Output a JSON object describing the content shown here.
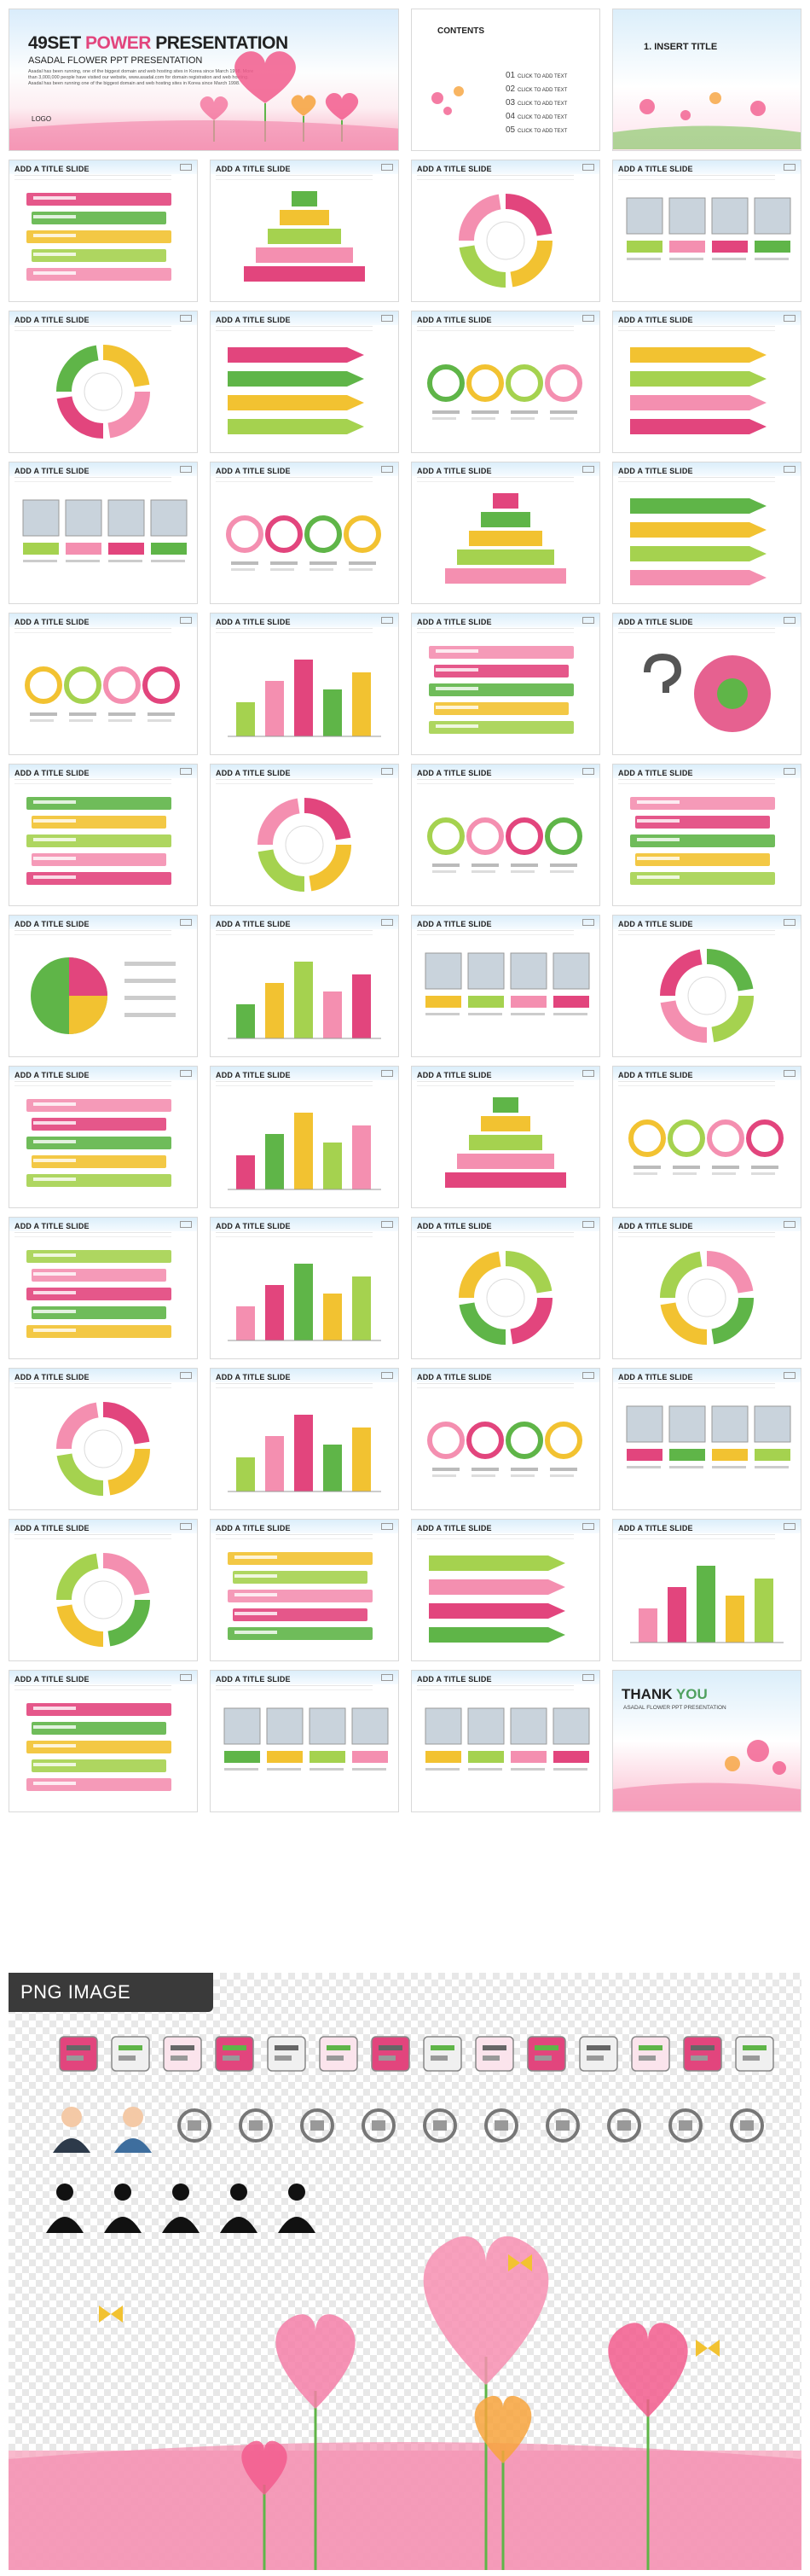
{
  "cover": {
    "title_part1": "49SET",
    "title_part2": "POWER",
    "title_part3": "PRESENTATION",
    "subtitle": "ASADAL FLOWER PPT PRESENTATION",
    "description": "Asadal has been running, one of the biggest domain and web hosting sites in Korea since March 1998. More than 3,000,000 people have visited our website, www.asadal.com for domain registration and web hosting. Asadal has been running one of the biggest domain and web hosting sites in Korea since March 1998.",
    "logo": "LOGO"
  },
  "contents": {
    "title": "CONTENTS",
    "items": [
      {
        "num": "01",
        "label": "CLICK TO ADD TEXT"
      },
      {
        "num": "02",
        "label": "CLICK TO ADD TEXT"
      },
      {
        "num": "03",
        "label": "CLICK TO ADD TEXT"
      },
      {
        "num": "04",
        "label": "CLICK TO ADD TEXT"
      },
      {
        "num": "05",
        "label": "CLICK TO ADD TEXT"
      }
    ]
  },
  "insert_slide": {
    "title": "1. INSERT TITLE"
  },
  "slide_title": "ADD A TITLE SLIDE",
  "thank_you": {
    "part1": "THANK",
    "part2": "YOU",
    "subtitle": "ASADAL FLOWER PPT PRESENTATION"
  },
  "png_section": {
    "label": "PNG IMAGE"
  },
  "colors": {
    "pink": "#e2457d",
    "green": "#5fb548",
    "yellow": "#f2c231",
    "lightgreen": "#a5d24f",
    "sky": "#dbeefa"
  },
  "icons": [
    "folder-icon",
    "tablet-icon",
    "magnifier-chart-icon",
    "bar-chart-icon",
    "search-icon",
    "gear-icon",
    "globe-icon",
    "hourglass-icon",
    "phone-icon",
    "mail-icon",
    "tools-icon",
    "floppy-icon",
    "monitor-icon",
    "battery-icon",
    "businessman-icon",
    "businessman-glasses-icon",
    "medal-icon",
    "growth-chart-icon",
    "hourglass-outline-icon",
    "gears-outline-icon",
    "lightbulb-icon",
    "shirt-icon",
    "smartphone-icon",
    "browser-icon",
    "palette-icon",
    "calendar-icon",
    "document-icon",
    "presenter-icon",
    "meeting-icon",
    "first-place-icon",
    "celebrate-icon"
  ]
}
